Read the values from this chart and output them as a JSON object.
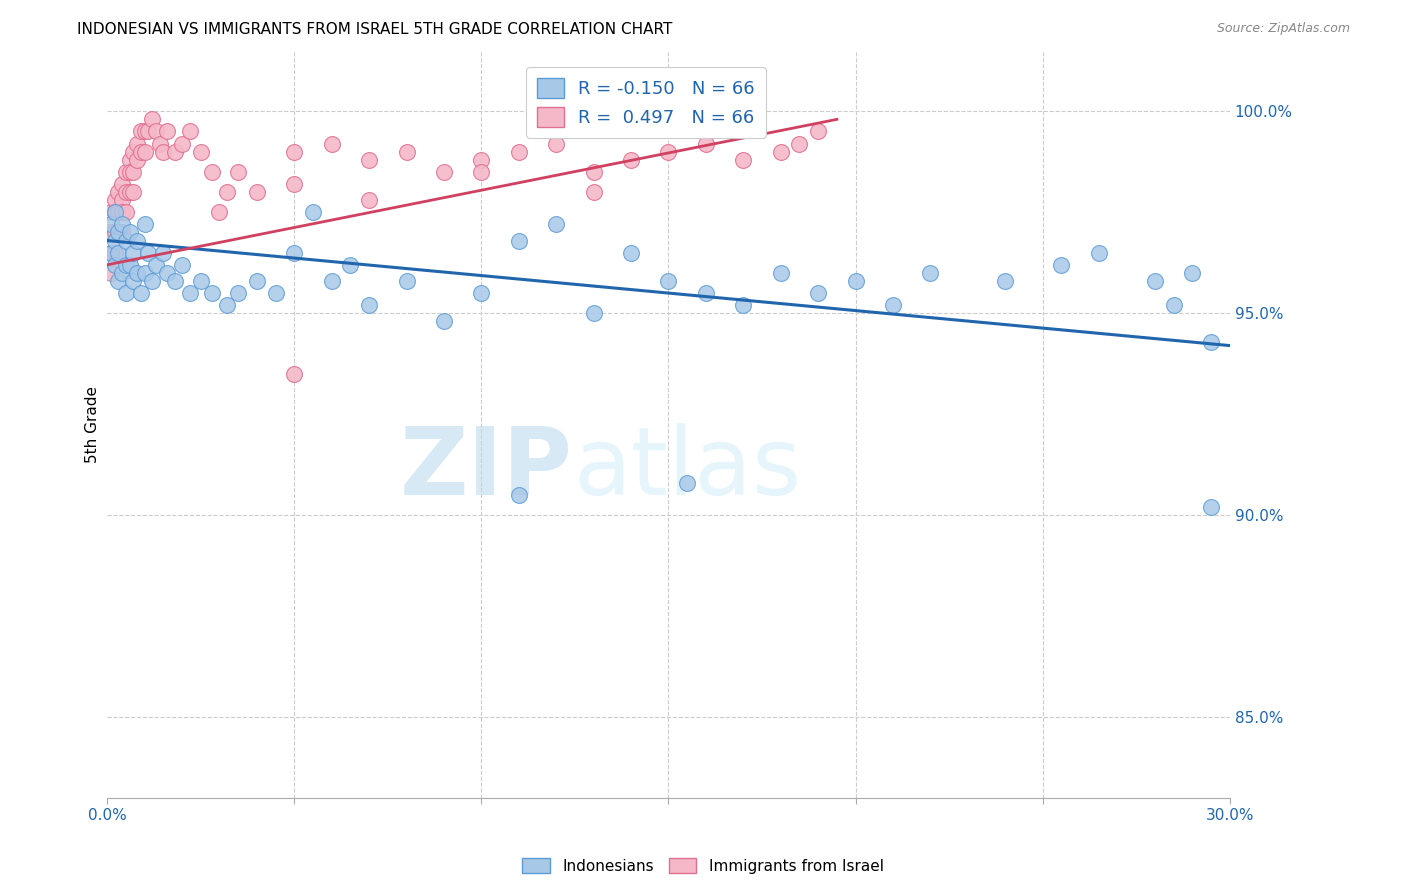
{
  "title": "INDONESIAN VS IMMIGRANTS FROM ISRAEL 5TH GRADE CORRELATION CHART",
  "source": "Source: ZipAtlas.com",
  "ylabel": "5th Grade",
  "xmin": 0.0,
  "xmax": 0.3,
  "ymin": 83.0,
  "ymax": 101.5,
  "R_blue": -0.15,
  "R_pink": 0.497,
  "N_blue": 66,
  "N_pink": 66,
  "blue_color": "#a8c8e8",
  "pink_color": "#f4b8c8",
  "blue_edge_color": "#5b9bd5",
  "pink_edge_color": "#e07090",
  "blue_line_color": "#2166ac",
  "pink_line_color": "#d04060",
  "watermark_color": "#cce0f0",
  "blue_line_x": [
    0.0,
    0.3
  ],
  "blue_line_y": [
    96.8,
    94.2
  ],
  "pink_line_x": [
    0.0,
    0.195
  ],
  "pink_line_y": [
    96.2,
    99.8
  ],
  "blue_x": [
    0.001,
    0.001,
    0.002,
    0.002,
    0.002,
    0.003,
    0.003,
    0.003,
    0.004,
    0.004,
    0.005,
    0.005,
    0.005,
    0.006,
    0.006,
    0.007,
    0.007,
    0.008,
    0.008,
    0.009,
    0.01,
    0.01,
    0.011,
    0.012,
    0.013,
    0.015,
    0.016,
    0.018,
    0.02,
    0.022,
    0.025,
    0.028,
    0.032,
    0.035,
    0.04,
    0.045,
    0.05,
    0.055,
    0.06,
    0.065,
    0.07,
    0.08,
    0.09,
    0.1,
    0.11,
    0.12,
    0.13,
    0.14,
    0.15,
    0.16,
    0.17,
    0.18,
    0.19,
    0.2,
    0.21,
    0.22,
    0.24,
    0.255,
    0.265,
    0.28,
    0.285,
    0.29,
    0.295,
    0.11,
    0.155,
    0.295
  ],
  "blue_y": [
    97.2,
    96.5,
    97.5,
    96.8,
    96.2,
    97.0,
    96.5,
    95.8,
    97.2,
    96.0,
    96.8,
    96.2,
    95.5,
    97.0,
    96.2,
    96.5,
    95.8,
    96.8,
    96.0,
    95.5,
    97.2,
    96.0,
    96.5,
    95.8,
    96.2,
    96.5,
    96.0,
    95.8,
    96.2,
    95.5,
    95.8,
    95.5,
    95.2,
    95.5,
    95.8,
    95.5,
    96.5,
    97.5,
    95.8,
    96.2,
    95.2,
    95.8,
    94.8,
    95.5,
    96.8,
    97.2,
    95.0,
    96.5,
    95.8,
    95.5,
    95.2,
    96.0,
    95.5,
    95.8,
    95.2,
    96.0,
    95.8,
    96.2,
    96.5,
    95.8,
    95.2,
    96.0,
    90.2,
    90.5,
    90.8,
    94.3
  ],
  "pink_x": [
    0.001,
    0.001,
    0.001,
    0.001,
    0.002,
    0.002,
    0.002,
    0.002,
    0.003,
    0.003,
    0.003,
    0.004,
    0.004,
    0.004,
    0.004,
    0.005,
    0.005,
    0.005,
    0.006,
    0.006,
    0.006,
    0.007,
    0.007,
    0.007,
    0.008,
    0.008,
    0.009,
    0.009,
    0.01,
    0.01,
    0.011,
    0.012,
    0.013,
    0.014,
    0.015,
    0.016,
    0.018,
    0.02,
    0.022,
    0.025,
    0.028,
    0.032,
    0.035,
    0.04,
    0.05,
    0.06,
    0.07,
    0.08,
    0.09,
    0.1,
    0.11,
    0.12,
    0.13,
    0.14,
    0.15,
    0.16,
    0.17,
    0.18,
    0.185,
    0.19,
    0.03,
    0.05,
    0.07,
    0.1,
    0.13,
    0.05
  ],
  "pink_y": [
    97.5,
    97.0,
    96.5,
    96.0,
    97.8,
    97.5,
    97.0,
    96.5,
    98.0,
    97.5,
    97.0,
    98.2,
    97.8,
    97.5,
    97.0,
    98.5,
    98.0,
    97.5,
    98.8,
    98.5,
    98.0,
    99.0,
    98.5,
    98.0,
    99.2,
    98.8,
    99.5,
    99.0,
    99.5,
    99.0,
    99.5,
    99.8,
    99.5,
    99.2,
    99.0,
    99.5,
    99.0,
    99.2,
    99.5,
    99.0,
    98.5,
    98.0,
    98.5,
    98.0,
    99.0,
    99.2,
    98.8,
    99.0,
    98.5,
    98.8,
    99.0,
    99.2,
    98.5,
    98.8,
    99.0,
    99.2,
    98.8,
    99.0,
    99.2,
    99.5,
    97.5,
    98.2,
    97.8,
    98.5,
    98.0,
    93.5
  ]
}
